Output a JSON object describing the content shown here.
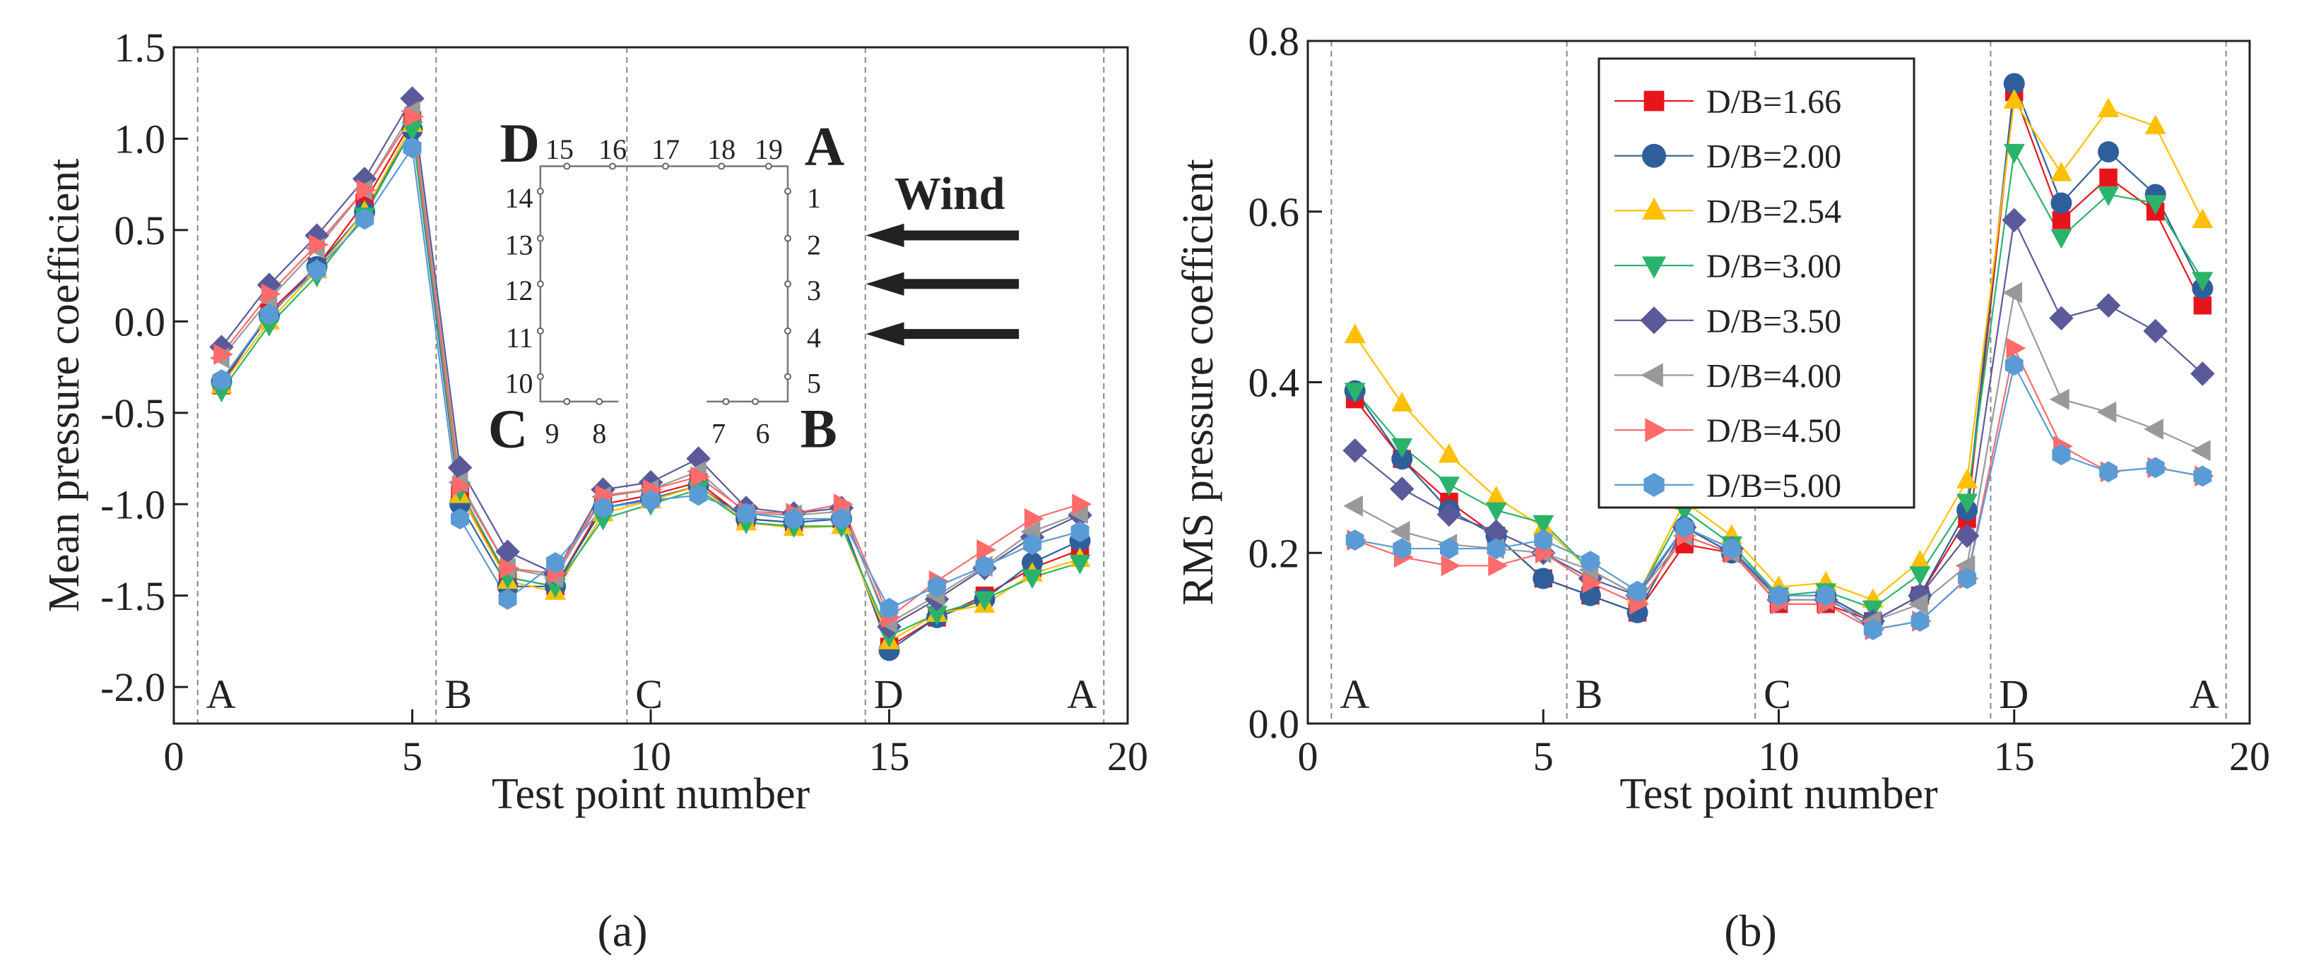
{
  "chart_data": [
    {
      "type": "line",
      "ylabel": "Mean pressure coefficient",
      "xlabel": "Test point number",
      "panel_label": "(a)",
      "xlim": [
        0,
        20
      ],
      "xticks": [
        0,
        5,
        10,
        15,
        20
      ],
      "ylim": [
        -2.2,
        1.5
      ],
      "yticks": [
        {
          "value": -2,
          "label": "-2.0"
        },
        -1.5,
        {
          "value": -1,
          "label": "-1.0"
        },
        -0.5,
        {
          "value": 0,
          "label": "0.0"
        },
        0.5,
        {
          "value": 1,
          "label": "1.0"
        },
        1.5
      ],
      "region_boundaries": [
        0.5,
        5.5,
        9.5,
        14.5,
        19.5
      ],
      "region_labels": [
        "A",
        "B",
        "C",
        "D",
        "A"
      ],
      "inset": {
        "wind": "Wind",
        "corners": [
          "D",
          "A",
          "C",
          "B"
        ],
        "point_labels": [
          1,
          2,
          3,
          4,
          5,
          6,
          7,
          8,
          9,
          10,
          11,
          12,
          13,
          14,
          15,
          16,
          17,
          18,
          19
        ]
      },
      "x": [
        1,
        2,
        3,
        4,
        5,
        6,
        7,
        8,
        9,
        10,
        11,
        12,
        13,
        14,
        15,
        16,
        17,
        18,
        19
      ],
      "series": [
        {
          "name": "D/B=1.66",
          "color": "#e8141c",
          "marker": "square",
          "values": [
            -0.35,
            0.05,
            0.3,
            0.65,
            1.1,
            -0.95,
            -1.4,
            -1.45,
            -1.0,
            -0.95,
            -0.88,
            -1.08,
            -1.1,
            -1.08,
            -1.78,
            -1.62,
            -1.5,
            -1.35,
            -1.25
          ]
        },
        {
          "name": "D/B=2.00",
          "color": "#2f5f9a",
          "marker": "circle",
          "values": [
            -0.33,
            0.03,
            0.3,
            0.6,
            1.05,
            -1.0,
            -1.45,
            -1.45,
            -1.02,
            -0.97,
            -0.9,
            -1.08,
            -1.1,
            -1.08,
            -1.8,
            -1.62,
            -1.52,
            -1.32,
            -1.2
          ]
        },
        {
          "name": "D/B=2.54",
          "color": "#ffc000",
          "marker": "up",
          "values": [
            -0.35,
            0.0,
            0.28,
            0.6,
            1.08,
            -0.95,
            -1.42,
            -1.48,
            -1.05,
            -0.98,
            -0.9,
            -1.1,
            -1.13,
            -1.12,
            -1.75,
            -1.6,
            -1.55,
            -1.38,
            -1.3
          ]
        },
        {
          "name": "D/B=3.00",
          "color": "#2bb36b",
          "marker": "down",
          "values": [
            -0.38,
            -0.02,
            0.25,
            0.58,
            1.05,
            -0.92,
            -1.4,
            -1.45,
            -1.08,
            -1.0,
            -0.92,
            -1.1,
            -1.12,
            -1.12,
            -1.72,
            -1.6,
            -1.52,
            -1.4,
            -1.32
          ]
        },
        {
          "name": "D/B=3.50",
          "color": "#5a5a9a",
          "marker": "diamond",
          "values": [
            -0.14,
            0.2,
            0.47,
            0.78,
            1.22,
            -0.8,
            -1.26,
            -1.38,
            -0.92,
            -0.88,
            -0.75,
            -1.02,
            -1.05,
            -1.02,
            -1.67,
            -1.52,
            -1.35,
            -1.18,
            -1.06
          ]
        },
        {
          "name": "D/B=4.00",
          "color": "#999999",
          "marker": "left",
          "values": [
            -0.2,
            0.12,
            0.4,
            0.72,
            1.15,
            -0.88,
            -1.35,
            -1.4,
            -0.96,
            -0.92,
            -0.82,
            -1.05,
            -1.06,
            -1.04,
            -1.65,
            -1.5,
            -1.34,
            -1.15,
            -1.05
          ]
        },
        {
          "name": "D/B=4.50",
          "color": "#ff6a6a",
          "marker": "right",
          "values": [
            -0.18,
            0.15,
            0.42,
            0.72,
            1.12,
            -0.9,
            -1.35,
            -1.38,
            -0.95,
            -0.92,
            -0.85,
            -1.04,
            -1.05,
            -1.0,
            -1.62,
            -1.42,
            -1.25,
            -1.08,
            -1.0
          ]
        },
        {
          "name": "D/B=5.00",
          "color": "#5b9bd5",
          "marker": "hexagon",
          "values": [
            -0.32,
            0.04,
            0.28,
            0.56,
            0.95,
            -1.08,
            -1.52,
            -1.32,
            -1.02,
            -0.98,
            -0.95,
            -1.05,
            -1.08,
            -1.08,
            -1.57,
            -1.45,
            -1.34,
            -1.22,
            -1.15
          ]
        }
      ]
    },
    {
      "type": "line",
      "ylabel": "RMS pressure coefficient",
      "xlabel": "Test point number",
      "panel_label": "(b)",
      "legend": "upper center",
      "xlim": [
        0,
        20
      ],
      "xticks": [
        0,
        5,
        10,
        15,
        20
      ],
      "ylim": [
        0,
        0.8
      ],
      "yticks": [
        {
          "value": 0,
          "label": "0.0"
        },
        0.2,
        0.4,
        0.6,
        0.8
      ],
      "region_boundaries": [
        0.5,
        5.5,
        9.5,
        14.5,
        19.5
      ],
      "region_labels": [
        "A",
        "B",
        "C",
        "D",
        "A"
      ],
      "x": [
        1,
        2,
        3,
        4,
        5,
        6,
        7,
        8,
        9,
        10,
        11,
        12,
        13,
        14,
        15,
        16,
        17,
        18,
        19
      ],
      "series": [
        {
          "name": "D/B=1.66",
          "color": "#e8141c",
          "marker": "square",
          "values": [
            0.38,
            0.31,
            0.26,
            0.22,
            0.17,
            0.15,
            0.13,
            0.21,
            0.2,
            0.14,
            0.14,
            0.12,
            0.15,
            0.24,
            0.74,
            0.59,
            0.64,
            0.6,
            0.49
          ]
        },
        {
          "name": "D/B=2.00",
          "color": "#2f5f9a",
          "marker": "circle",
          "values": [
            0.39,
            0.31,
            0.25,
            0.22,
            0.17,
            0.15,
            0.13,
            0.23,
            0.2,
            0.15,
            0.15,
            0.12,
            0.15,
            0.25,
            0.75,
            0.61,
            0.67,
            0.62,
            0.51
          ]
        },
        {
          "name": "D/B=2.54",
          "color": "#ffc000",
          "marker": "up",
          "values": [
            0.455,
            0.375,
            0.315,
            0.265,
            0.23,
            0.18,
            0.15,
            0.26,
            0.22,
            0.16,
            0.165,
            0.145,
            0.19,
            0.285,
            0.73,
            0.645,
            0.72,
            0.7,
            0.59
          ]
        },
        {
          "name": "D/B=3.00",
          "color": "#2bb36b",
          "marker": "down",
          "values": [
            0.39,
            0.325,
            0.28,
            0.25,
            0.235,
            0.18,
            0.15,
            0.25,
            0.21,
            0.15,
            0.155,
            0.135,
            0.175,
            0.26,
            0.67,
            0.57,
            0.62,
            0.61,
            0.52
          ]
        },
        {
          "name": "D/B=3.50",
          "color": "#5a5a9a",
          "marker": "diamond",
          "values": [
            0.32,
            0.275,
            0.245,
            0.225,
            0.2,
            0.17,
            0.15,
            0.23,
            0.205,
            0.145,
            0.145,
            0.12,
            0.15,
            0.22,
            0.59,
            0.475,
            0.49,
            0.46,
            0.41
          ]
        },
        {
          "name": "D/B=4.00",
          "color": "#999999",
          "marker": "left",
          "values": [
            0.255,
            0.225,
            0.21,
            0.205,
            0.2,
            0.18,
            0.15,
            0.22,
            0.2,
            0.145,
            0.145,
            0.12,
            0.14,
            0.185,
            0.505,
            0.38,
            0.365,
            0.345,
            0.32
          ]
        },
        {
          "name": "D/B=4.50",
          "color": "#ff6a6a",
          "marker": "right",
          "values": [
            0.215,
            0.195,
            0.185,
            0.185,
            0.2,
            0.165,
            0.14,
            0.22,
            0.2,
            0.14,
            0.14,
            0.11,
            0.12,
            0.17,
            0.44,
            0.325,
            0.295,
            0.3,
            0.29
          ]
        },
        {
          "name": "D/B=5.00",
          "color": "#5b9bd5",
          "marker": "hexagon",
          "values": [
            0.215,
            0.205,
            0.205,
            0.205,
            0.215,
            0.19,
            0.155,
            0.23,
            0.205,
            0.15,
            0.15,
            0.11,
            0.12,
            0.17,
            0.42,
            0.315,
            0.295,
            0.3,
            0.29
          ]
        }
      ]
    }
  ]
}
